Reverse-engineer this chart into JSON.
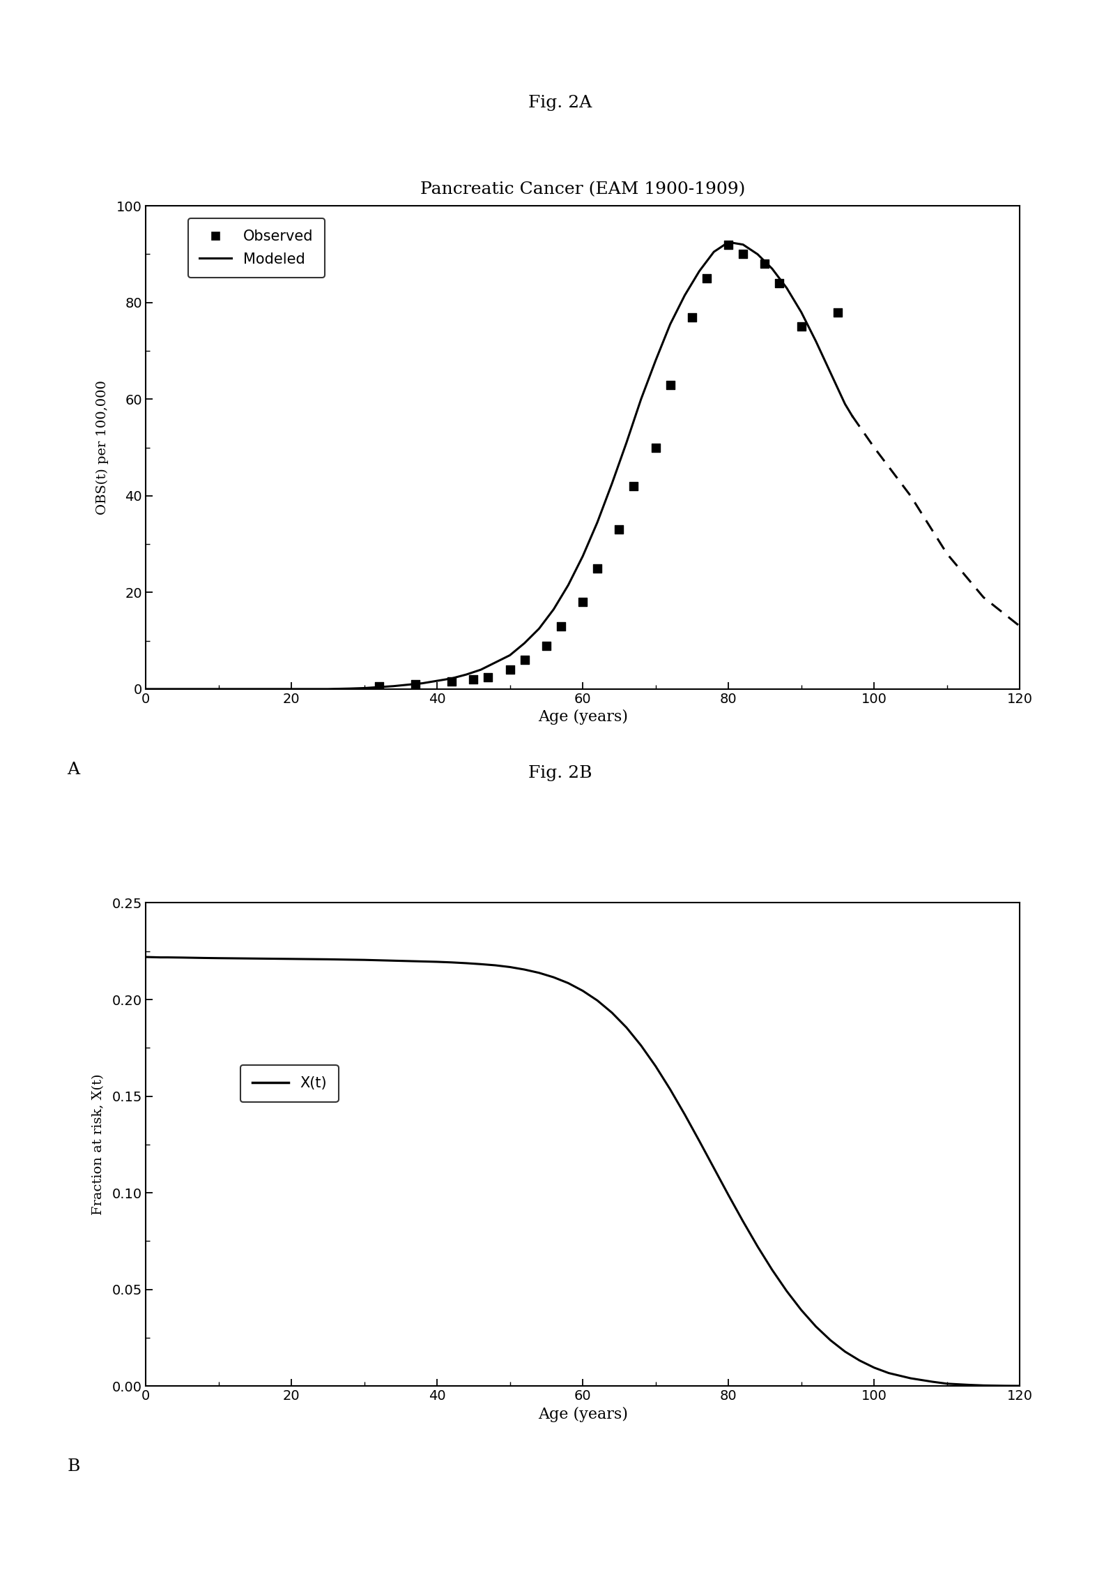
{
  "fig2a_title": "Fig. 2A",
  "fig2b_title": "Fig. 2B",
  "chart_a_title": "Pancreatic Cancer (EAM 1900-1909)",
  "xlabel_a": "Age (years)",
  "ylabel_a": "OBS(t) per 100,000",
  "xlabel_b": "Age (years)",
  "ylabel_b": "Fraction at risk, X(t)",
  "label_a": "A",
  "label_b": "B",
  "observed_x": [
    32,
    37,
    42,
    45,
    47,
    50,
    52,
    55,
    57,
    60,
    62,
    65,
    67,
    70,
    72,
    75,
    77,
    80,
    82,
    85,
    87,
    90,
    95
  ],
  "observed_y": [
    0.5,
    1.0,
    1.5,
    2.0,
    2.5,
    4.0,
    6.0,
    9.0,
    13.0,
    18.0,
    25.0,
    33.0,
    42.0,
    50.0,
    63.0,
    77.0,
    85.0,
    92.0,
    90.0,
    88.0,
    84.0,
    75.0,
    78.0
  ],
  "modeled_solid_x": [
    0,
    5,
    10,
    15,
    20,
    25,
    28,
    30,
    32,
    34,
    36,
    38,
    40,
    42,
    44,
    46,
    48,
    50,
    52,
    54,
    56,
    58,
    60,
    62,
    64,
    66,
    68,
    70,
    72,
    74,
    76,
    78,
    80,
    82,
    84,
    86,
    88,
    90,
    92,
    94,
    96,
    97
  ],
  "modeled_solid_y": [
    0,
    0,
    0,
    0,
    0,
    0,
    0.1,
    0.2,
    0.4,
    0.6,
    0.9,
    1.2,
    1.7,
    2.2,
    3.0,
    4.0,
    5.5,
    7.0,
    9.5,
    12.5,
    16.5,
    21.5,
    27.5,
    34.5,
    42.5,
    51.0,
    60.0,
    68.0,
    75.5,
    81.5,
    86.5,
    90.5,
    92.5,
    92.0,
    90.0,
    87.0,
    83.0,
    78.0,
    72.0,
    65.5,
    59.0,
    56.5
  ],
  "modeled_dashed_x": [
    97,
    100,
    105,
    110,
    115,
    120
  ],
  "modeled_dashed_y": [
    56.5,
    50.0,
    40.0,
    28.0,
    19.0,
    13.0
  ],
  "ylim_a": [
    0,
    100
  ],
  "xlim_a": [
    0,
    120
  ],
  "xticks_a": [
    0,
    20,
    40,
    60,
    80,
    100,
    120
  ],
  "yticks_a": [
    0,
    20,
    40,
    60,
    80,
    100
  ],
  "fraction_x": [
    0,
    1,
    2,
    3,
    5,
    8,
    10,
    15,
    20,
    25,
    30,
    35,
    40,
    42,
    44,
    46,
    48,
    50,
    52,
    54,
    56,
    58,
    60,
    62,
    64,
    66,
    68,
    70,
    72,
    74,
    76,
    78,
    80,
    82,
    84,
    86,
    88,
    90,
    92,
    94,
    96,
    98,
    100,
    102,
    105,
    108,
    110,
    113,
    115,
    118,
    120
  ],
  "fraction_y": [
    0.222,
    0.2219,
    0.2218,
    0.2218,
    0.2217,
    0.2215,
    0.2214,
    0.2212,
    0.221,
    0.2208,
    0.2205,
    0.22,
    0.2195,
    0.2192,
    0.2188,
    0.2183,
    0.2177,
    0.2168,
    0.2155,
    0.2138,
    0.2115,
    0.2085,
    0.2045,
    0.1995,
    0.1932,
    0.1855,
    0.1762,
    0.1655,
    0.1535,
    0.1405,
    0.1268,
    0.1128,
    0.0988,
    0.0852,
    0.0722,
    0.0601,
    0.0491,
    0.0393,
    0.0308,
    0.0237,
    0.0178,
    0.0132,
    0.0095,
    0.0067,
    0.004,
    0.0022,
    0.0012,
    0.0006,
    0.0003,
    0.0001,
    5e-05
  ],
  "ylim_b": [
    0,
    0.25
  ],
  "xlim_b": [
    0,
    120
  ],
  "xticks_b": [
    0,
    20,
    40,
    60,
    80,
    100,
    120
  ],
  "yticks_b": [
    0,
    0.05,
    0.1,
    0.15,
    0.2,
    0.25
  ],
  "background_color": "#ffffff",
  "line_color": "#000000",
  "marker_color": "#000000",
  "legend_x_label": "X(t)"
}
